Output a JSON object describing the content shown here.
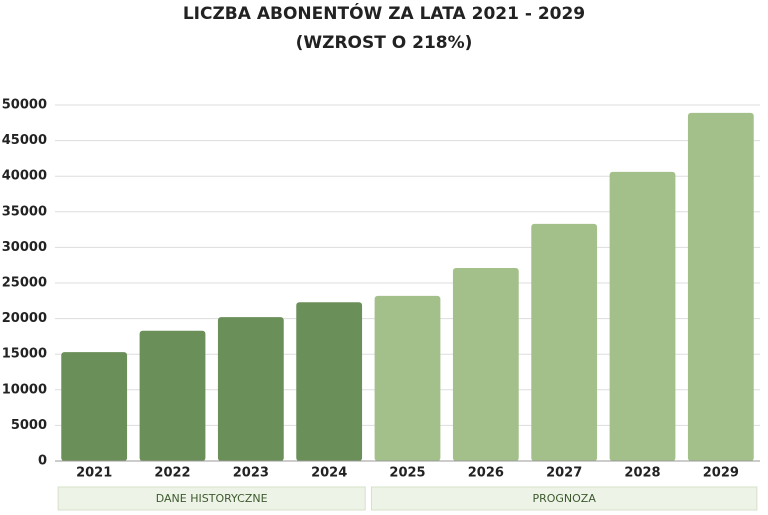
{
  "chart_data": {
    "type": "bar",
    "title": "LICZBA ABONENTÓW ZA LATA 2021 - 2029",
    "subtitle": "(WZROST O 218%)",
    "categories": [
      "2021",
      "2022",
      "2023",
      "2024",
      "2025",
      "2026",
      "2027",
      "2028",
      "2029"
    ],
    "series": [
      {
        "name": "DANE HISTORYCZNE",
        "color": "#6b8f58",
        "values": [
          15300,
          18300,
          20200,
          22300,
          null,
          null,
          null,
          null,
          null
        ]
      },
      {
        "name": "PROGNOZA",
        "color": "#a3c08b",
        "values": [
          null,
          null,
          null,
          null,
          23200,
          27100,
          33300,
          40600,
          48900
        ]
      }
    ],
    "ylim": [
      0,
      50000
    ],
    "yticks": [
      0,
      5000,
      10000,
      15000,
      20000,
      25000,
      30000,
      35000,
      40000,
      45000,
      50000
    ],
    "grid": true
  }
}
